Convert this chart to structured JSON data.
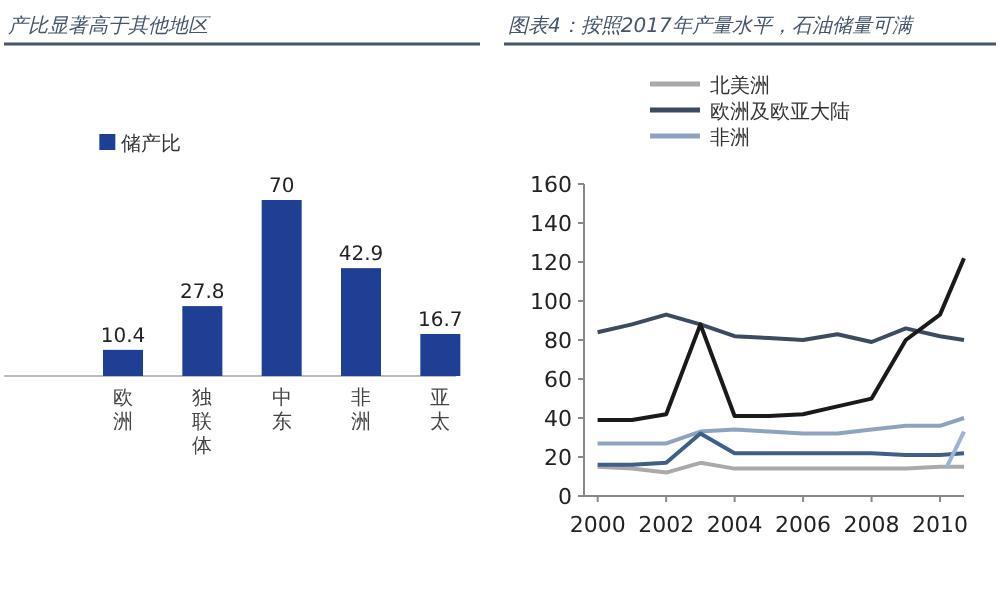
{
  "chart_data": [
    {
      "type": "bar",
      "title": "产比显著高于其他地区",
      "categories": [
        null,
        "欧洲",
        "独联体",
        "中东",
        "非洲",
        "亚太"
      ],
      "series": [
        {
          "name": "储产比",
          "color": "#1f3f94",
          "values": [
            null,
            10.4,
            27.8,
            70,
            42.9,
            16.7
          ]
        }
      ],
      "data_labels": true,
      "legend": "top left"
    },
    {
      "type": "line",
      "title": "图表4：按照2017年产量水平，石油储量可满",
      "legend": "top left",
      "x": [
        2000,
        2001,
        2002,
        2003,
        2004,
        2005,
        2006,
        2007,
        2008,
        2009,
        2010,
        2010.7
      ],
      "xlim": [
        1999.6,
        2010.7
      ],
      "xticks": [
        2000,
        2002,
        2004,
        2006,
        2008,
        2010
      ],
      "ylim": [
        0,
        160
      ],
      "yticks": [
        0,
        20,
        40,
        60,
        80,
        100,
        120,
        140,
        160
      ],
      "series": [
        {
          "name": "北美洲",
          "color": "#a9a9a9",
          "values": [
            15,
            14,
            12,
            17,
            14,
            14,
            14,
            14,
            14,
            14,
            15,
            15
          ]
        },
        {
          "name": "欧洲及欧亚大陆",
          "color": "#3d4b5f",
          "values": [
            84,
            88,
            93,
            88,
            82,
            81,
            80,
            83,
            79,
            86,
            82,
            80
          ]
        },
        {
          "name": "非洲",
          "color": "#8fa3bf",
          "values": [
            27,
            27,
            27,
            33,
            34,
            33,
            32,
            32,
            34,
            36,
            36,
            40
          ]
        },
        {
          "color": "#1a1a1a",
          "values": [
            39,
            39,
            42,
            88,
            41,
            41,
            42,
            46,
            50,
            80,
            93,
            122
          ]
        },
        {
          "color": "#3f5f86",
          "values": [
            16,
            16,
            17,
            32,
            22,
            22,
            22,
            22,
            22,
            21,
            21,
            22
          ]
        },
        {
          "color": "#9bb4d6",
          "x": [
            2010.2,
            2010.7
          ],
          "values": [
            15,
            33
          ]
        }
      ]
    }
  ]
}
